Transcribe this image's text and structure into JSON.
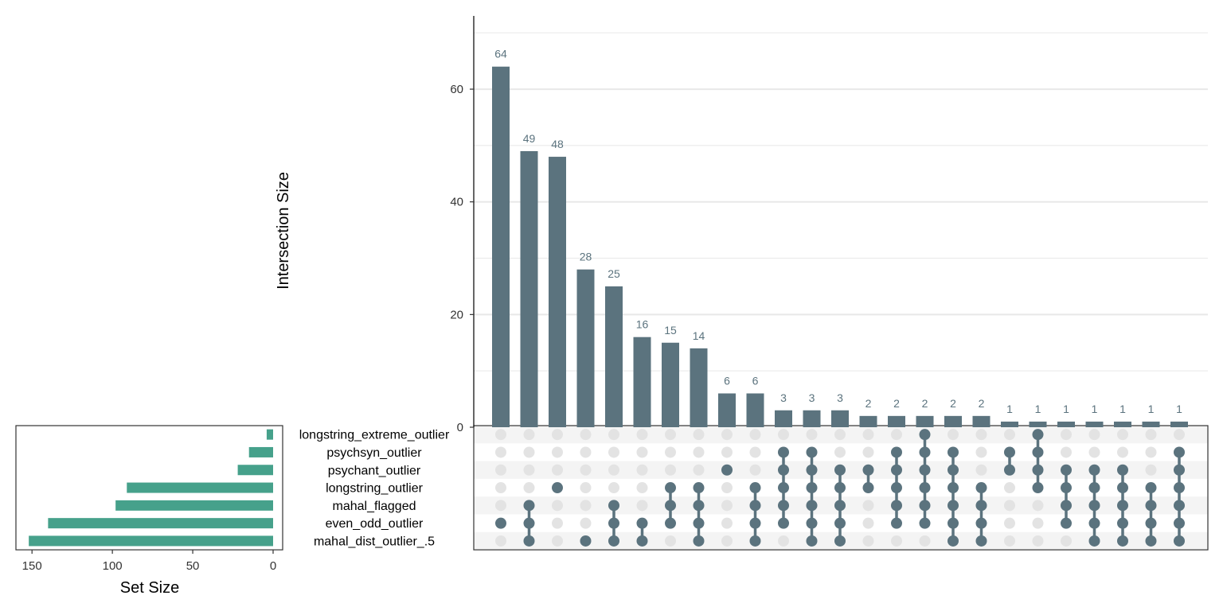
{
  "chart_data": {
    "type": "upset",
    "colors": {
      "intersection_bar": "#5b737e",
      "set_bar": "#46a18b",
      "dot_active": "#5b737e",
      "dot_inactive": "#e3e3e3",
      "row_stripe": "#f4f4f4",
      "grid": "#e8e8e8"
    },
    "intersection_axis": {
      "title": "Intersection Size",
      "ylim": [
        0,
        73
      ],
      "ticks": [
        0,
        20,
        40,
        60
      ]
    },
    "set_size_axis": {
      "title": "Set Size",
      "xlim": [
        160,
        0
      ],
      "ticks": [
        150,
        100,
        50,
        0
      ]
    },
    "sets": [
      {
        "name": "longstring_extreme_outlier",
        "size": 4
      },
      {
        "name": "psychsyn_outlier",
        "size": 15
      },
      {
        "name": "psychant_outlier",
        "size": 22
      },
      {
        "name": "longstring_outlier",
        "size": 91
      },
      {
        "name": "mahal_flagged",
        "size": 98
      },
      {
        "name": "even_odd_outlier",
        "size": 140
      },
      {
        "name": "mahal_dist_outlier_.5",
        "size": 152
      }
    ],
    "intersections": [
      {
        "value": 64,
        "label": "64",
        "members": [
          5
        ]
      },
      {
        "value": 49,
        "label": "49",
        "members": [
          4,
          5,
          6
        ]
      },
      {
        "value": 48,
        "label": "48",
        "members": [
          3
        ]
      },
      {
        "value": 28,
        "label": "28",
        "members": [
          6
        ]
      },
      {
        "value": 25,
        "label": "25",
        "members": [
          4,
          5,
          6
        ]
      },
      {
        "value": 16,
        "label": "16",
        "members": [
          5,
          6
        ]
      },
      {
        "value": 15,
        "label": "15",
        "members": [
          3,
          4,
          5
        ]
      },
      {
        "value": 14,
        "label": "14",
        "members": [
          3,
          4,
          5,
          6
        ]
      },
      {
        "value": 6,
        "label": "6",
        "members": [
          2
        ]
      },
      {
        "value": 6,
        "label": "6",
        "members": [
          3,
          4,
          5,
          6
        ]
      },
      {
        "value": 3,
        "label": "3",
        "members": [
          1,
          2,
          3,
          4,
          5
        ]
      },
      {
        "value": 3,
        "label": "3",
        "members": [
          1,
          2,
          3,
          4,
          5,
          6
        ]
      },
      {
        "value": 3,
        "label": "3",
        "members": [
          2,
          3,
          4,
          5,
          6
        ]
      },
      {
        "value": 2,
        "label": "2",
        "members": [
          2,
          3
        ]
      },
      {
        "value": 2,
        "label": "2",
        "members": [
          1,
          2,
          3,
          4,
          5
        ]
      },
      {
        "value": 2,
        "label": "2",
        "members": [
          0,
          1,
          2,
          3,
          4,
          5
        ]
      },
      {
        "value": 2,
        "label": "2",
        "members": [
          1,
          2,
          3,
          4,
          5,
          6
        ]
      },
      {
        "value": 2,
        "label": "2",
        "members": [
          3,
          4,
          5,
          6
        ]
      },
      {
        "value": 1,
        "label": "1",
        "members": [
          1,
          2
        ]
      },
      {
        "value": 1,
        "label": "1",
        "members": [
          0,
          1,
          2,
          3
        ]
      },
      {
        "value": 1,
        "label": "1",
        "members": [
          2,
          3,
          4,
          5
        ]
      },
      {
        "value": 1,
        "label": "1",
        "members": [
          2,
          3,
          4,
          5,
          6
        ]
      },
      {
        "value": 1,
        "label": "1",
        "members": [
          2,
          3,
          4,
          5,
          6
        ]
      },
      {
        "value": 1,
        "label": "1",
        "members": [
          3,
          4,
          5,
          6
        ]
      },
      {
        "value": 1,
        "label": "1",
        "members": [
          1,
          2,
          3,
          4,
          5,
          6
        ]
      }
    ]
  }
}
